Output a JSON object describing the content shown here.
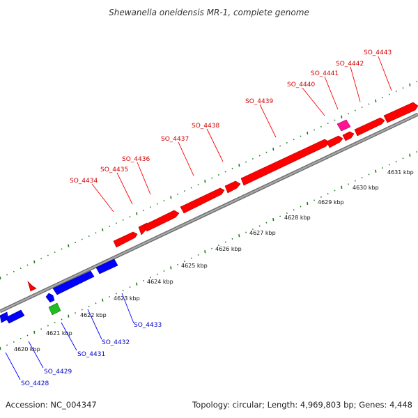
{
  "title": "Shewanella oneidensis MR-1, complete genome",
  "footer": {
    "accession": "Accession: NC_004347",
    "summary": "Topology: circular; Length: 4,969,803 bp; Genes: 4,448"
  },
  "colors": {
    "forward_gene": "#ff0000",
    "reverse_gene": "#0000ff",
    "special_forward": "#ff1493",
    "special_reverse": "#22bb22",
    "ticks": "#1a7a1a",
    "forward_label": "#d40000",
    "reverse_label": "#0000c8",
    "backbone": "#888888"
  },
  "scale_kbp": [
    "4620 kbp",
    "4621 kbp",
    "4622 kbp",
    "4623 kbp",
    "4624 kbp",
    "4625 kbp",
    "4626 kbp",
    "4627 kbp",
    "4628 kbp",
    "4629 kbp",
    "4630 kbp",
    "4631 kbp"
  ],
  "forward_genes": [
    "SO_4434",
    "SO_4435",
    "SO_4436",
    "SO_4437",
    "SO_4438",
    "SO_4439",
    "SO_4440",
    "SO_4441",
    "SO_4442",
    "SO_4443"
  ],
  "reverse_genes": [
    "SO_4428",
    "SO_4429",
    "SO_4431",
    "SO_4432",
    "SO_4433"
  ]
}
